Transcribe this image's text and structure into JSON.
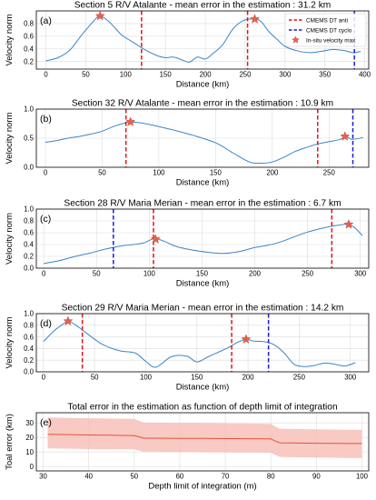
{
  "colors": {
    "profile": "#3a85c8",
    "anti": "#e0141b",
    "cyclo": "#1c1cd6",
    "star": "#e8624a",
    "star_edge": "#b5402e",
    "mean_line": "#e8503a",
    "band": "#f7c1b8",
    "grid": "#dcdcdc"
  },
  "legend": {
    "anti": "CMEMS DT anti",
    "cyclo": "CMEMS DT cyclo",
    "star": "In-situ velocity max"
  },
  "chart_data": [
    {
      "type": "line",
      "letter": "(a)",
      "title": "Section 5 R/V Atalante - mean error in the estimation : 31.2 km",
      "xlabel": "Distance (km)",
      "ylabel": "Velocity norm",
      "xlim": [
        -12,
        405
      ],
      "ylim": [
        0.08,
        1.0
      ],
      "xticks": [
        "0",
        "50",
        "100",
        "150",
        "200",
        "250",
        "300",
        "350",
        "400"
      ],
      "yticks": [
        "0.2",
        "0.4",
        "0.6",
        "0.8"
      ],
      "grid": true,
      "legend_position": "top-right",
      "series": [
        {
          "x": [
            0,
            15,
            30,
            45,
            60,
            68,
            80,
            95,
            110,
            125,
            140,
            150,
            160,
            170,
            180,
            190,
            200,
            210,
            222,
            235,
            248,
            262,
            270,
            280,
            290,
            300,
            315,
            330,
            345,
            360,
            375,
            385,
            395
          ],
          "y": [
            0.21,
            0.26,
            0.38,
            0.62,
            0.84,
            0.92,
            0.82,
            0.62,
            0.5,
            0.38,
            0.29,
            0.26,
            0.27,
            0.23,
            0.19,
            0.27,
            0.24,
            0.33,
            0.47,
            0.72,
            0.85,
            0.87,
            0.83,
            0.67,
            0.55,
            0.44,
            0.37,
            0.34,
            0.36,
            0.39,
            0.37,
            0.34,
            0.36
          ]
        }
      ],
      "stars": [
        [
          68,
          0.92
        ],
        [
          262,
          0.87
        ]
      ],
      "anti_lines": [
        120,
        253
      ],
      "cyclo_lines": [
        387
      ]
    },
    {
      "type": "line",
      "letter": "(b)",
      "title": "Section 32 R/V Atalante - mean error in the estimation : 10.9 km",
      "xlabel": "Distance (km)",
      "ylabel": "Velocity norm",
      "xlim": [
        -8,
        285
      ],
      "ylim": [
        0.0,
        1.0
      ],
      "xticks": [
        "0",
        "50",
        "100",
        "150",
        "200",
        "250"
      ],
      "yticks": [
        "0.0",
        "0.5",
        "1.0"
      ],
      "grid": true,
      "series": [
        {
          "x": [
            0,
            10,
            20,
            30,
            40,
            50,
            60,
            70,
            75,
            85,
            100,
            115,
            130,
            150,
            165,
            180,
            190,
            200,
            210,
            220,
            230,
            240,
            250,
            260,
            265,
            270,
            280
          ],
          "y": [
            0.43,
            0.46,
            0.5,
            0.53,
            0.57,
            0.62,
            0.7,
            0.76,
            0.78,
            0.76,
            0.7,
            0.63,
            0.55,
            0.42,
            0.25,
            0.09,
            0.07,
            0.09,
            0.17,
            0.27,
            0.34,
            0.4,
            0.44,
            0.48,
            0.53,
            0.48,
            0.51
          ]
        }
      ],
      "stars": [
        [
          75,
          0.78
        ],
        [
          264,
          0.53
        ]
      ],
      "anti_lines": [
        71,
        240
      ],
      "cyclo_lines": [
        271
      ]
    },
    {
      "type": "line",
      "letter": "(c)",
      "title": "Section 28 R/V Maria Merian - mean error in the estimation : 6.7 km",
      "xlabel": "Distance (km)",
      "ylabel": "Velocity norm",
      "xlim": [
        -7,
        308
      ],
      "ylim": [
        0.0,
        1.0
      ],
      "xticks": [
        "0",
        "50",
        "100",
        "150",
        "200",
        "250",
        "300"
      ],
      "yticks": [
        "0.0",
        "0.2",
        "0.4",
        "0.6",
        "0.8",
        "1.0"
      ],
      "grid": true,
      "series": [
        {
          "x": [
            0,
            15,
            30,
            45,
            60,
            75,
            85,
            95,
            105,
            115,
            125,
            140,
            155,
            170,
            185,
            200,
            210,
            220,
            230,
            240,
            250,
            260,
            270,
            280,
            288,
            295,
            302
          ],
          "y": [
            0.08,
            0.13,
            0.2,
            0.26,
            0.33,
            0.38,
            0.4,
            0.43,
            0.5,
            0.45,
            0.37,
            0.31,
            0.27,
            0.25,
            0.28,
            0.35,
            0.38,
            0.42,
            0.48,
            0.55,
            0.61,
            0.66,
            0.7,
            0.73,
            0.74,
            0.68,
            0.55
          ]
        }
      ],
      "stars": [
        [
          106,
          0.49
        ],
        [
          289,
          0.74
        ]
      ],
      "anti_lines": [
        104,
        273
      ],
      "cyclo_lines": [
        66
      ]
    },
    {
      "type": "line",
      "letter": "(d)",
      "title": "Section 29 R/V Maria Merian - mean error in the estimation : 14.2 km",
      "xlabel": "Distance (km)",
      "ylabel": "Velocity norm",
      "xlim": [
        -7,
        318
      ],
      "ylim": [
        0.0,
        1.0
      ],
      "xticks": [
        "0",
        "50",
        "100",
        "150",
        "200",
        "250",
        "300"
      ],
      "yticks": [
        "0.0",
        "0.2",
        "0.4",
        "0.6",
        "0.8",
        "1.0"
      ],
      "grid": true,
      "series": [
        {
          "x": [
            0,
            10,
            20,
            25,
            35,
            50,
            60,
            75,
            90,
            100,
            110,
            125,
            140,
            150,
            160,
            170,
            180,
            190,
            198,
            205,
            215,
            225,
            235,
            245,
            255,
            265,
            275,
            285,
            295,
            305
          ],
          "y": [
            0.52,
            0.7,
            0.83,
            0.87,
            0.76,
            0.56,
            0.45,
            0.36,
            0.32,
            0.18,
            0.08,
            0.26,
            0.27,
            0.17,
            0.25,
            0.33,
            0.41,
            0.51,
            0.56,
            0.53,
            0.52,
            0.47,
            0.33,
            0.13,
            0.09,
            0.11,
            0.15,
            0.13,
            0.1,
            0.16
          ]
        }
      ],
      "stars": [
        [
          24,
          0.87
        ],
        [
          198,
          0.56
        ]
      ],
      "anti_lines": [
        38,
        184
      ],
      "cyclo_lines": [
        220
      ]
    },
    {
      "type": "area",
      "letter": "(e)",
      "title": "Total error in the estimation as function of depth limit of integration",
      "xlabel": "Depth limit of integration (m)",
      "ylabel": "Toal error (km)",
      "xlim": [
        28.5,
        101.5
      ],
      "ylim": [
        -3,
        37
      ],
      "xticks": [
        "30",
        "40",
        "50",
        "60",
        "70",
        "80",
        "90",
        "100"
      ],
      "yticks": [
        "0",
        "10",
        "20",
        "30"
      ],
      "grid": true,
      "x": [
        31,
        35,
        40,
        45,
        50,
        51,
        52,
        55,
        60,
        65,
        70,
        75,
        80,
        81,
        82,
        85,
        90,
        95,
        100
      ],
      "mean": [
        22.2,
        22.0,
        21.7,
        21.5,
        21.3,
        20.5,
        19.5,
        19.5,
        19.4,
        19.3,
        19.2,
        19.1,
        19.0,
        17.5,
        16.3,
        16.2,
        16.0,
        15.9,
        15.8
      ],
      "lower": [
        12.5,
        12.3,
        12.0,
        11.9,
        11.8,
        11.0,
        10.2,
        10.2,
        10.0,
        9.8,
        9.7,
        9.6,
        9.5,
        8.0,
        6.6,
        6.4,
        6.2,
        6.0,
        5.8
      ],
      "upper": [
        33.8,
        33.5,
        33.2,
        33.0,
        32.8,
        31.5,
        30.3,
        30.2,
        30.0,
        29.8,
        29.6,
        29.5,
        29.4,
        27.5,
        26.0,
        25.8,
        25.6,
        25.4,
        25.2
      ]
    }
  ]
}
